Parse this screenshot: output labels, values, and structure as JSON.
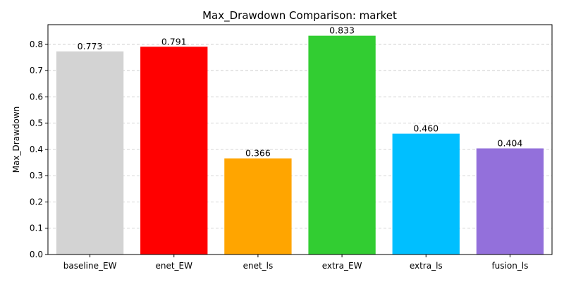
{
  "chart_data": {
    "type": "bar",
    "title": "Max_Drawdown Comparison: market",
    "xlabel": "",
    "ylabel": "Max_Drawdown",
    "categories": [
      "baseline_EW",
      "enet_EW",
      "enet_ls",
      "extra_EW",
      "extra_ls",
      "fusion_ls"
    ],
    "values": [
      0.773,
      0.791,
      0.366,
      0.833,
      0.46,
      0.404
    ],
    "value_labels": [
      "0.773",
      "0.791",
      "0.366",
      "0.833",
      "0.460",
      "0.404"
    ],
    "colors": [
      "#d3d3d3",
      "#ff0000",
      "#ffa500",
      "#32cd32",
      "#00bfff",
      "#9370db"
    ],
    "ylim": [
      0,
      0.875
    ],
    "yticks": [
      0.0,
      0.1,
      0.2,
      0.3,
      0.4,
      0.5,
      0.6,
      0.7,
      0.8
    ],
    "ytick_labels": [
      "0.0",
      "0.1",
      "0.2",
      "0.3",
      "0.4",
      "0.5",
      "0.6",
      "0.7",
      "0.8"
    ],
    "grid": "y-dashed",
    "legend": "none"
  }
}
